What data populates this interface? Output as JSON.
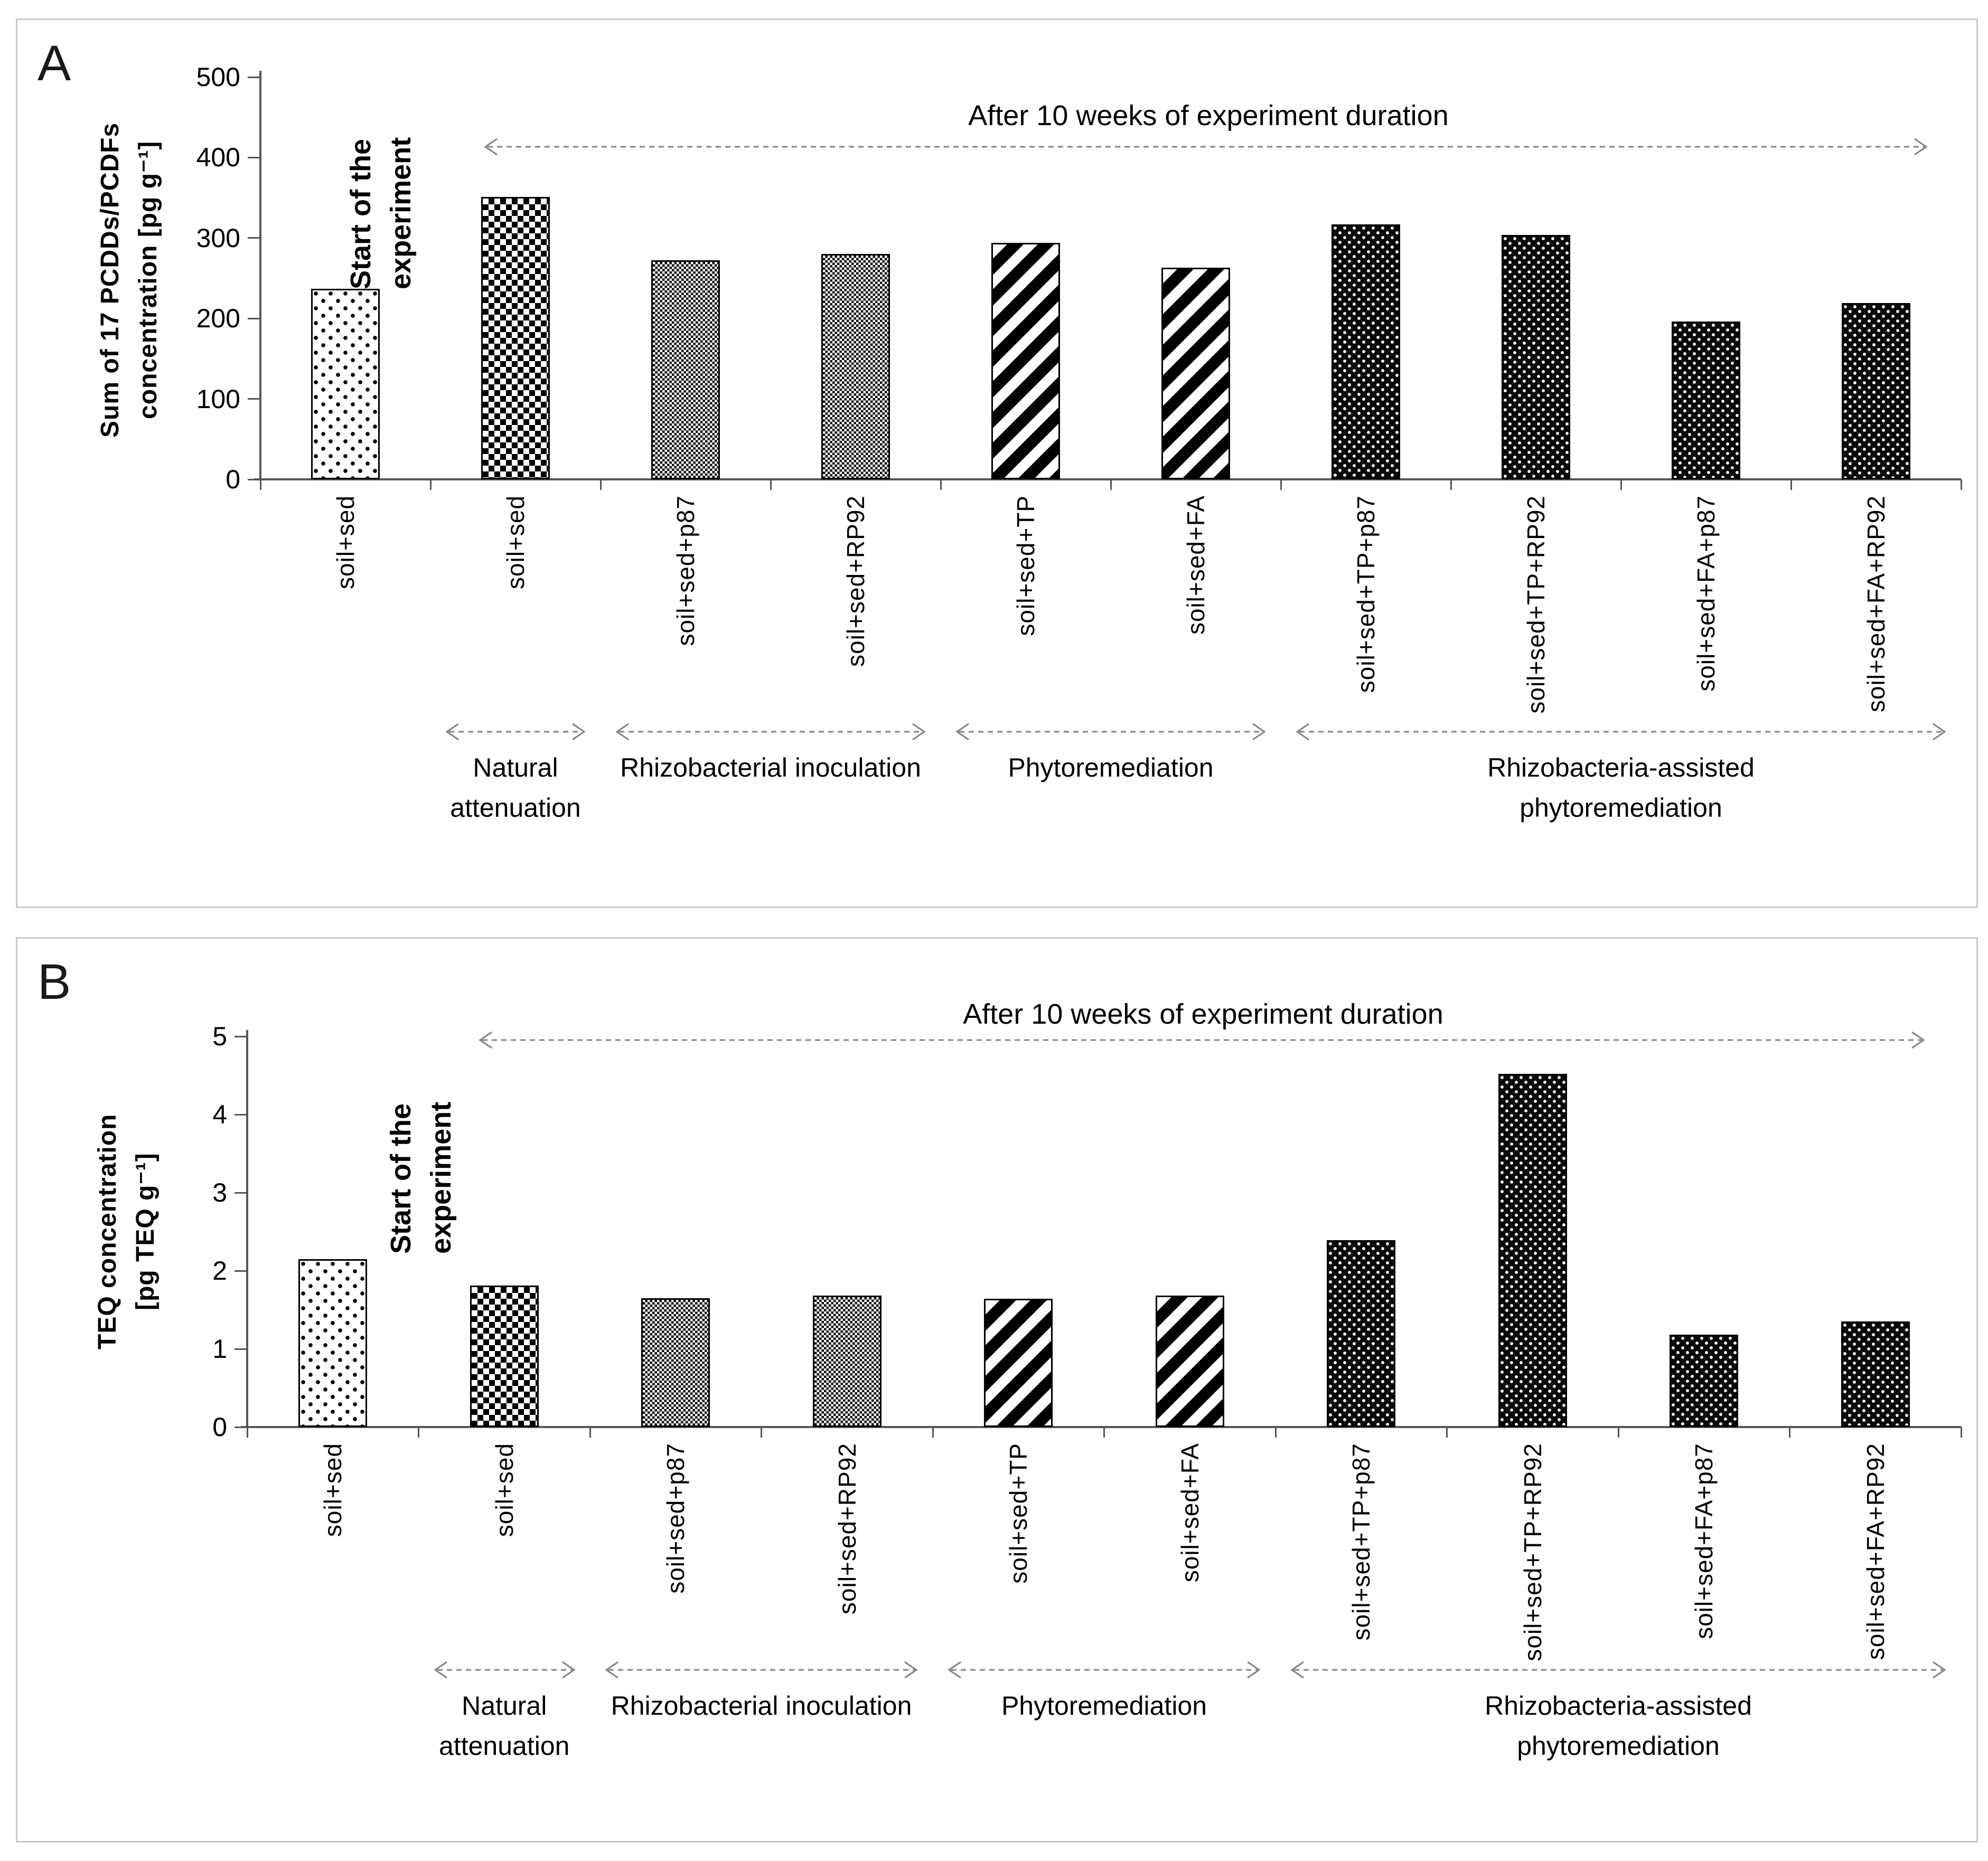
{
  "chart_data": [
    {
      "panel": "A",
      "type": "bar",
      "title": "After 10 weeks of experiment duration",
      "ylabel": "Sum of 17 PCDDs/PCDFs\nconcentration [pg g⁻¹]",
      "ylim": [
        0,
        500
      ],
      "yticks": [
        0,
        100,
        200,
        300,
        400,
        500
      ],
      "grid": false,
      "start_annotation": "Start of the\nexperiment",
      "categories": [
        "soil+sed",
        "soil+sed",
        "soil+sed+p87",
        "soil+sed+RP92",
        "soil+sed+TP",
        "soil+sed+FA",
        "soil+sed+TP+p87",
        "soil+sed+TP+RP92",
        "soil+sed+FA+p87",
        "soil+sed+FA+RP92"
      ],
      "values": [
        237,
        351,
        272,
        280,
        294,
        263,
        317,
        304,
        196,
        219
      ],
      "patterns": [
        "dot-light",
        "checker",
        "checker-gray",
        "checker-gray",
        "stripe",
        "stripe",
        "dot-dark",
        "dot-dark",
        "dot-dark",
        "dot-dark"
      ],
      "groups": [
        {
          "label": "Natural attenuation",
          "from": 1,
          "to": 1
        },
        {
          "label": "Rhizobacterial inoculation",
          "from": 2,
          "to": 3
        },
        {
          "label": "Phytoremediation",
          "from": 4,
          "to": 5
        },
        {
          "label": "Rhizobacteria-assisted phytoremediation",
          "from": 6,
          "to": 9
        }
      ]
    },
    {
      "panel": "B",
      "type": "bar",
      "title": "After 10 weeks of experiment duration",
      "ylabel": "TEQ concentration\n[pg TEQ g⁻¹]",
      "ylim": [
        0,
        5
      ],
      "yticks": [
        0,
        1,
        2,
        3,
        4,
        5
      ],
      "grid": false,
      "start_annotation": "Start of the\nexperiment",
      "categories": [
        "soil+sed",
        "soil+sed",
        "soil+sed+p87",
        "soil+sed+RP92",
        "soil+sed+TP",
        "soil+sed+FA",
        "soil+sed+TP+p87",
        "soil+sed+TP+RP92",
        "soil+sed+FA+p87",
        "soil+sed+FA+RP92"
      ],
      "values": [
        2.15,
        1.81,
        1.65,
        1.68,
        1.64,
        1.68,
        2.39,
        4.52,
        1.18,
        1.35
      ],
      "patterns": [
        "dot-light",
        "checker",
        "checker-gray",
        "checker-gray",
        "stripe",
        "stripe",
        "dot-dark",
        "dot-dark",
        "dot-dark",
        "dot-dark"
      ],
      "groups": [
        {
          "label": "Natural attenuation",
          "from": 1,
          "to": 1
        },
        {
          "label": "Rhizobacterial inoculation",
          "from": 2,
          "to": 3
        },
        {
          "label": "Phytoremediation",
          "from": 4,
          "to": 5
        },
        {
          "label": "Rhizobacteria-assisted phytoremediation",
          "from": 6,
          "to": 9
        }
      ]
    }
  ],
  "colors": {
    "axis": "#555555",
    "arrow": "#838383",
    "panel_border": "#c9c9c9",
    "bar_fill_dark": "#0a0a0a",
    "text": "#000000"
  }
}
